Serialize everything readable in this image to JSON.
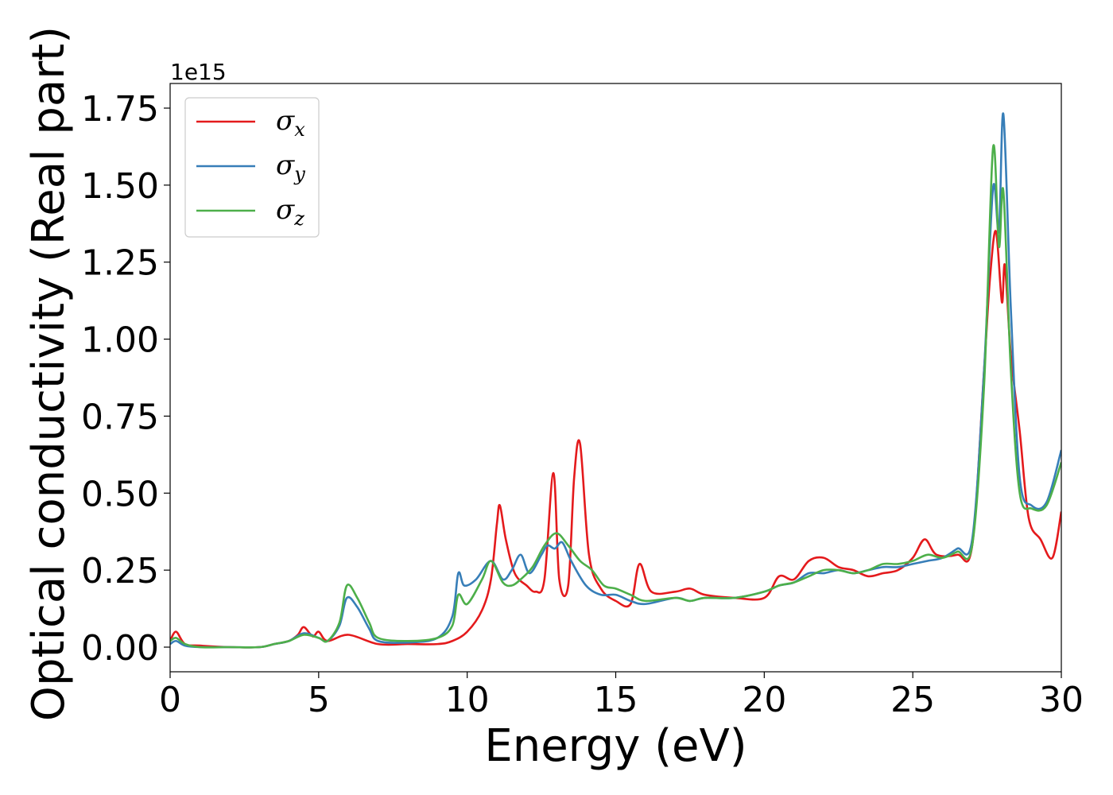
{
  "chart_data": {
    "type": "line",
    "xlabel": "Energy (eV)",
    "ylabel": "Optical conductivity (Real part)",
    "y_offset_text": "1e15",
    "xlim": [
      0,
      30
    ],
    "ylim": [
      -0.08,
      1.83
    ],
    "y_scale_factor": "1e15",
    "xticks": [
      0,
      5,
      10,
      15,
      20,
      25,
      30
    ],
    "xtick_labels": [
      "0",
      "5",
      "10",
      "15",
      "20",
      "25",
      "30"
    ],
    "yticks": [
      0.0,
      0.25,
      0.5,
      0.75,
      1.0,
      1.25,
      1.5,
      1.75
    ],
    "ytick_labels": [
      "0.00",
      "0.25",
      "0.50",
      "0.75",
      "1.00",
      "1.25",
      "1.50",
      "1.75"
    ],
    "grid": false,
    "legend_position": "top-left",
    "series": [
      {
        "name": "σx",
        "name_base": "σ",
        "name_sub": "x",
        "color": "#e41a1c",
        "x": [
          0,
          0.2,
          0.5,
          1,
          2,
          3,
          3.5,
          4,
          4.3,
          4.5,
          4.8,
          5,
          5.3,
          6,
          7,
          8,
          9,
          9.5,
          10,
          10.5,
          10.8,
          11,
          11.1,
          11.3,
          11.6,
          12,
          12.3,
          12.6,
          12.9,
          13.1,
          13.4,
          13.6,
          13.8,
          14.1,
          14.5,
          15,
          15.5,
          15.8,
          16.2,
          17,
          17.5,
          18,
          19,
          20,
          20.5,
          21,
          21.5,
          22,
          22.5,
          23,
          23.5,
          24,
          24.5,
          25,
          25.4,
          25.8,
          26.5,
          27,
          27.4,
          27.6,
          27.8,
          28,
          28.1,
          28.3,
          28.6,
          28.9,
          29.3,
          29.7,
          30
        ],
        "y": [
          0.02,
          0.05,
          0.01,
          0.005,
          0.0,
          0.0,
          0.01,
          0.02,
          0.04,
          0.065,
          0.035,
          0.05,
          0.02,
          0.04,
          0.01,
          0.01,
          0.01,
          0.02,
          0.05,
          0.12,
          0.22,
          0.4,
          0.46,
          0.35,
          0.24,
          0.2,
          0.18,
          0.22,
          0.565,
          0.22,
          0.2,
          0.55,
          0.66,
          0.3,
          0.19,
          0.15,
          0.14,
          0.27,
          0.18,
          0.18,
          0.19,
          0.17,
          0.16,
          0.16,
          0.23,
          0.22,
          0.28,
          0.29,
          0.26,
          0.25,
          0.23,
          0.24,
          0.25,
          0.29,
          0.35,
          0.3,
          0.3,
          0.33,
          0.9,
          1.2,
          1.35,
          1.12,
          1.24,
          0.95,
          0.7,
          0.42,
          0.35,
          0.29,
          0.44
        ]
      },
      {
        "name": "σy",
        "name_base": "σ",
        "name_sub": "y",
        "color": "#377eb8",
        "x": [
          0,
          0.2,
          0.5,
          1,
          2,
          3,
          3.5,
          4,
          4.5,
          5,
          5.3,
          5.7,
          5.95,
          6.3,
          6.7,
          7,
          8,
          9,
          9.5,
          9.7,
          9.9,
          10.3,
          10.8,
          11.2,
          11.5,
          11.8,
          12.1,
          12.5,
          12.7,
          12.95,
          13.2,
          13.5,
          14,
          14.5,
          15,
          15.5,
          16,
          17,
          17.5,
          18,
          19,
          20,
          20.5,
          21,
          21.5,
          22,
          22.5,
          23,
          23.5,
          24,
          24.5,
          25,
          25.5,
          26,
          26.5,
          27,
          27.4,
          27.7,
          27.9,
          28.05,
          28.3,
          28.6,
          29,
          29.5,
          30
        ],
        "y": [
          0.01,
          0.02,
          0.005,
          0.0,
          0.0,
          0.0,
          0.01,
          0.02,
          0.045,
          0.03,
          0.02,
          0.07,
          0.16,
          0.13,
          0.06,
          0.02,
          0.015,
          0.03,
          0.1,
          0.24,
          0.2,
          0.22,
          0.28,
          0.22,
          0.25,
          0.3,
          0.24,
          0.3,
          0.33,
          0.32,
          0.34,
          0.28,
          0.2,
          0.17,
          0.17,
          0.15,
          0.14,
          0.16,
          0.15,
          0.16,
          0.16,
          0.18,
          0.2,
          0.21,
          0.24,
          0.24,
          0.25,
          0.24,
          0.25,
          0.26,
          0.26,
          0.27,
          0.28,
          0.29,
          0.32,
          0.35,
          0.9,
          1.49,
          1.35,
          1.73,
          1.1,
          0.55,
          0.46,
          0.47,
          0.64
        ]
      },
      {
        "name": "σz",
        "name_base": "σ",
        "name_sub": "z",
        "color": "#4daf4a",
        "x": [
          0,
          0.2,
          0.5,
          1,
          2,
          3,
          3.5,
          4,
          4.5,
          5,
          5.3,
          5.7,
          5.95,
          6.3,
          6.7,
          7,
          8,
          9,
          9.5,
          9.7,
          10,
          10.5,
          10.8,
          11.2,
          11.5,
          11.8,
          12.2,
          12.6,
          13,
          13.4,
          13.8,
          14.2,
          14.6,
          15,
          15.5,
          16,
          17,
          17.5,
          18,
          19,
          20,
          20.5,
          21,
          21.5,
          22,
          22.5,
          23,
          23.5,
          24,
          24.5,
          25,
          25.5,
          26,
          26.5,
          27,
          27.4,
          27.7,
          27.9,
          28.05,
          28.3,
          28.6,
          29,
          29.5,
          30
        ],
        "y": [
          0.02,
          0.03,
          0.01,
          0.0,
          0.0,
          0.0,
          0.01,
          0.02,
          0.04,
          0.03,
          0.02,
          0.08,
          0.2,
          0.16,
          0.08,
          0.03,
          0.02,
          0.03,
          0.07,
          0.17,
          0.14,
          0.22,
          0.28,
          0.21,
          0.2,
          0.22,
          0.26,
          0.33,
          0.37,
          0.33,
          0.28,
          0.25,
          0.2,
          0.19,
          0.17,
          0.15,
          0.16,
          0.15,
          0.16,
          0.16,
          0.18,
          0.2,
          0.21,
          0.23,
          0.25,
          0.25,
          0.24,
          0.25,
          0.27,
          0.27,
          0.28,
          0.3,
          0.29,
          0.31,
          0.33,
          0.85,
          1.62,
          1.3,
          1.48,
          0.9,
          0.5,
          0.45,
          0.46,
          0.6
        ]
      }
    ]
  }
}
